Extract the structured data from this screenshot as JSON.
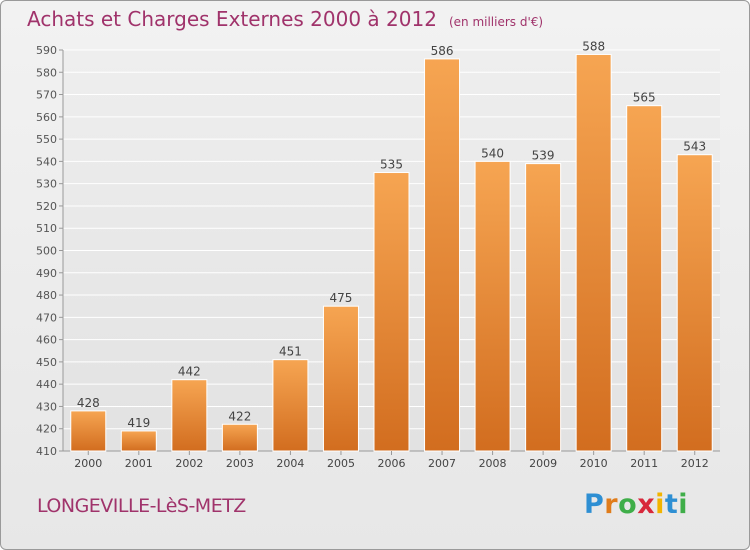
{
  "chart_data": {
    "type": "bar",
    "title": "Achats et Charges Externes 2000 à 2012",
    "subtitle": "(en milliers d'€)",
    "categories": [
      "2000",
      "2001",
      "2002",
      "2003",
      "2004",
      "2005",
      "2006",
      "2007",
      "2008",
      "2009",
      "2010",
      "2011",
      "2012"
    ],
    "values": [
      428,
      419,
      442,
      422,
      451,
      475,
      535,
      586,
      540,
      539,
      588,
      565,
      543
    ],
    "ylim": [
      410,
      590
    ],
    "yticks": [
      410,
      420,
      430,
      440,
      450,
      460,
      470,
      480,
      490,
      500,
      510,
      520,
      530,
      540,
      550,
      560,
      570,
      580,
      590
    ],
    "grid": true,
    "bar_color_top": "#f6a552",
    "bar_color_bottom": "#d26d1f"
  },
  "footer": {
    "commune": "LONGEVILLE-LèS-METZ",
    "logo_letters": [
      "P",
      "r",
      "o",
      "x",
      "i",
      "t",
      "i"
    ],
    "logo_colors": [
      "#2e8fd3",
      "#e07c1a",
      "#3fae49",
      "#d8283b",
      "#f2b400",
      "#2e8fd3",
      "#3fae49"
    ]
  }
}
